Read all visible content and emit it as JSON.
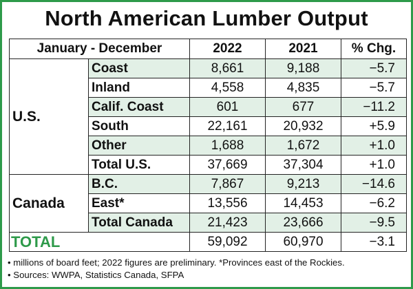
{
  "title": "North American Lumber Output",
  "header": {
    "period": "January - December",
    "col1": "2022",
    "col2": "2021",
    "col3": "% Chg."
  },
  "groups": [
    {
      "label": "U.S.",
      "rows": [
        {
          "name": "Coast",
          "v2022": "8,661",
          "v2021": "9,188",
          "chg": "−5.7"
        },
        {
          "name": "Inland",
          "v2022": "4,558",
          "v2021": "4,835",
          "chg": "−5.7"
        },
        {
          "name": "Calif. Coast",
          "v2022": "601",
          "v2021": "677",
          "chg": "−11.2"
        },
        {
          "name": "South",
          "v2022": "22,161",
          "v2021": "20,932",
          "chg": "+5.9"
        },
        {
          "name": "Other",
          "v2022": "1,688",
          "v2021": "1,672",
          "chg": "+1.0"
        },
        {
          "name": "Total U.S.",
          "v2022": "37,669",
          "v2021": "37,304",
          "chg": "+1.0"
        }
      ]
    },
    {
      "label": "Canada",
      "rows": [
        {
          "name": "B.C.",
          "v2022": "7,867",
          "v2021": "9,213",
          "chg": "−14.6"
        },
        {
          "name": "East*",
          "v2022": "13,556",
          "v2021": "14,453",
          "chg": "−6.2"
        },
        {
          "name": "Total Canada",
          "v2022": "21,423",
          "v2021": "23,666",
          "chg": "−9.5"
        }
      ]
    }
  ],
  "total": {
    "label": "TOTAL",
    "v2022": "59,092",
    "v2021": "60,970",
    "chg": "−3.1"
  },
  "notes": [
    "• millions of board feet; 2022 figures are preliminary. *Provinces east of the Rockies.",
    "• Sources:  WWPA, Statistics Canada, SFPA"
  ],
  "colors": {
    "accent": "#2e9a4a",
    "shade": "#e2f0e6"
  }
}
